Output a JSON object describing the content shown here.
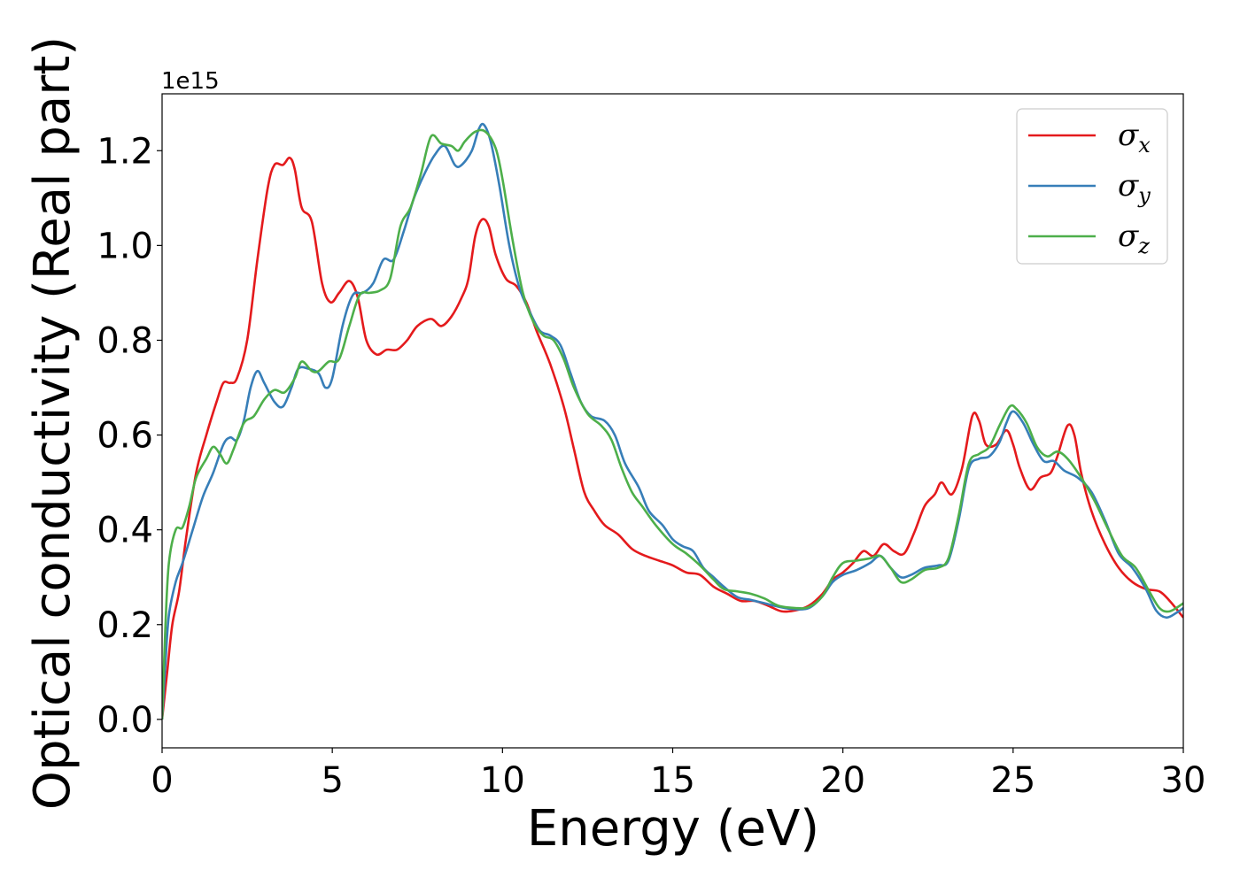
{
  "chart_data": {
    "type": "line",
    "title": "",
    "xlabel": "Energy (eV)",
    "ylabel": "Optical conductivity (Real part)",
    "y_offset_label": "1e15",
    "xlim": [
      0,
      30
    ],
    "ylim": [
      -0.06,
      1.32
    ],
    "xticks": [
      0,
      5,
      10,
      15,
      20,
      25,
      30
    ],
    "xtick_labels": [
      "0",
      "5",
      "10",
      "15",
      "20",
      "25",
      "30"
    ],
    "yticks": [
      0.0,
      0.2,
      0.4,
      0.6,
      0.8,
      1.0,
      1.2
    ],
    "ytick_labels": [
      "0.0",
      "0.2",
      "0.4",
      "0.6",
      "0.8",
      "1.0",
      "1.2"
    ],
    "grid": false,
    "legend_position": "top-right",
    "series": [
      {
        "name": "σx",
        "symbol": "σ",
        "subscript": "x",
        "color": "#e41a1c",
        "points": [
          [
            0,
            0
          ],
          [
            0.15,
            0.1
          ],
          [
            0.3,
            0.2
          ],
          [
            0.5,
            0.27
          ],
          [
            0.7,
            0.38
          ],
          [
            1.0,
            0.52
          ],
          [
            1.3,
            0.6
          ],
          [
            1.6,
            0.67
          ],
          [
            1.8,
            0.71
          ],
          [
            2.0,
            0.71
          ],
          [
            2.2,
            0.72
          ],
          [
            2.5,
            0.8
          ],
          [
            2.8,
            0.97
          ],
          [
            3.1,
            1.12
          ],
          [
            3.3,
            1.17
          ],
          [
            3.55,
            1.17
          ],
          [
            3.75,
            1.185
          ],
          [
            3.9,
            1.16
          ],
          [
            4.1,
            1.08
          ],
          [
            4.4,
            1.05
          ],
          [
            4.7,
            0.92
          ],
          [
            4.95,
            0.88
          ],
          [
            5.2,
            0.9
          ],
          [
            5.5,
            0.925
          ],
          [
            5.75,
            0.89
          ],
          [
            6.0,
            0.8
          ],
          [
            6.3,
            0.77
          ],
          [
            6.6,
            0.78
          ],
          [
            6.9,
            0.78
          ],
          [
            7.2,
            0.8
          ],
          [
            7.5,
            0.83
          ],
          [
            7.9,
            0.845
          ],
          [
            8.2,
            0.83
          ],
          [
            8.5,
            0.85
          ],
          [
            8.8,
            0.89
          ],
          [
            9.0,
            0.93
          ],
          [
            9.2,
            1.02
          ],
          [
            9.4,
            1.055
          ],
          [
            9.6,
            1.04
          ],
          [
            9.8,
            0.98
          ],
          [
            10.1,
            0.93
          ],
          [
            10.4,
            0.915
          ],
          [
            10.7,
            0.88
          ],
          [
            11.0,
            0.82
          ],
          [
            11.4,
            0.75
          ],
          [
            11.8,
            0.66
          ],
          [
            12.1,
            0.57
          ],
          [
            12.4,
            0.48
          ],
          [
            12.7,
            0.44
          ],
          [
            13.0,
            0.41
          ],
          [
            13.4,
            0.39
          ],
          [
            13.8,
            0.36
          ],
          [
            14.2,
            0.345
          ],
          [
            14.6,
            0.335
          ],
          [
            15.0,
            0.325
          ],
          [
            15.4,
            0.31
          ],
          [
            15.8,
            0.305
          ],
          [
            16.2,
            0.28
          ],
          [
            16.6,
            0.265
          ],
          [
            17.0,
            0.25
          ],
          [
            17.4,
            0.25
          ],
          [
            17.8,
            0.24
          ],
          [
            18.2,
            0.228
          ],
          [
            18.6,
            0.23
          ],
          [
            19.0,
            0.24
          ],
          [
            19.4,
            0.265
          ],
          [
            19.7,
            0.295
          ],
          [
            20.0,
            0.31
          ],
          [
            20.3,
            0.33
          ],
          [
            20.6,
            0.355
          ],
          [
            20.9,
            0.345
          ],
          [
            21.2,
            0.37
          ],
          [
            21.5,
            0.355
          ],
          [
            21.8,
            0.35
          ],
          [
            22.1,
            0.395
          ],
          [
            22.4,
            0.45
          ],
          [
            22.7,
            0.475
          ],
          [
            22.9,
            0.5
          ],
          [
            23.2,
            0.475
          ],
          [
            23.5,
            0.53
          ],
          [
            23.8,
            0.64
          ],
          [
            24.0,
            0.63
          ],
          [
            24.2,
            0.58
          ],
          [
            24.5,
            0.58
          ],
          [
            24.8,
            0.61
          ],
          [
            25.0,
            0.58
          ],
          [
            25.2,
            0.53
          ],
          [
            25.5,
            0.485
          ],
          [
            25.8,
            0.51
          ],
          [
            26.1,
            0.52
          ],
          [
            26.3,
            0.555
          ],
          [
            26.6,
            0.62
          ],
          [
            26.8,
            0.6
          ],
          [
            27.0,
            0.52
          ],
          [
            27.3,
            0.44
          ],
          [
            27.7,
            0.37
          ],
          [
            28.1,
            0.32
          ],
          [
            28.5,
            0.29
          ],
          [
            28.9,
            0.275
          ],
          [
            29.3,
            0.27
          ],
          [
            29.6,
            0.25
          ],
          [
            30.0,
            0.215
          ]
        ]
      },
      {
        "name": "σy",
        "symbol": "σ",
        "subscript": "y",
        "color": "#377eb8",
        "points": [
          [
            0,
            0
          ],
          [
            0.1,
            0.12
          ],
          [
            0.2,
            0.22
          ],
          [
            0.4,
            0.29
          ],
          [
            0.6,
            0.33
          ],
          [
            0.9,
            0.4
          ],
          [
            1.2,
            0.47
          ],
          [
            1.5,
            0.52
          ],
          [
            1.8,
            0.58
          ],
          [
            2.0,
            0.595
          ],
          [
            2.2,
            0.59
          ],
          [
            2.4,
            0.63
          ],
          [
            2.6,
            0.7
          ],
          [
            2.8,
            0.735
          ],
          [
            3.0,
            0.71
          ],
          [
            3.3,
            0.67
          ],
          [
            3.55,
            0.66
          ],
          [
            3.8,
            0.7
          ],
          [
            4.0,
            0.74
          ],
          [
            4.3,
            0.74
          ],
          [
            4.6,
            0.73
          ],
          [
            4.8,
            0.7
          ],
          [
            5.0,
            0.72
          ],
          [
            5.3,
            0.83
          ],
          [
            5.6,
            0.895
          ],
          [
            5.9,
            0.9
          ],
          [
            6.2,
            0.92
          ],
          [
            6.5,
            0.97
          ],
          [
            6.8,
            0.97
          ],
          [
            7.1,
            1.03
          ],
          [
            7.4,
            1.1
          ],
          [
            7.7,
            1.15
          ],
          [
            8.0,
            1.19
          ],
          [
            8.3,
            1.21
          ],
          [
            8.6,
            1.17
          ],
          [
            8.8,
            1.17
          ],
          [
            9.1,
            1.2
          ],
          [
            9.3,
            1.245
          ],
          [
            9.45,
            1.255
          ],
          [
            9.65,
            1.22
          ],
          [
            9.9,
            1.13
          ],
          [
            10.2,
            1.0
          ],
          [
            10.5,
            0.91
          ],
          [
            10.8,
            0.86
          ],
          [
            11.1,
            0.82
          ],
          [
            11.4,
            0.81
          ],
          [
            11.7,
            0.79
          ],
          [
            12.0,
            0.73
          ],
          [
            12.3,
            0.67
          ],
          [
            12.6,
            0.64
          ],
          [
            13.0,
            0.63
          ],
          [
            13.3,
            0.6
          ],
          [
            13.6,
            0.54
          ],
          [
            14.0,
            0.49
          ],
          [
            14.3,
            0.44
          ],
          [
            14.7,
            0.41
          ],
          [
            15.0,
            0.38
          ],
          [
            15.3,
            0.365
          ],
          [
            15.6,
            0.355
          ],
          [
            15.9,
            0.32
          ],
          [
            16.2,
            0.3
          ],
          [
            16.5,
            0.28
          ],
          [
            16.9,
            0.258
          ],
          [
            17.3,
            0.252
          ],
          [
            17.7,
            0.245
          ],
          [
            18.1,
            0.238
          ],
          [
            18.5,
            0.233
          ],
          [
            19.0,
            0.235
          ],
          [
            19.4,
            0.26
          ],
          [
            19.7,
            0.29
          ],
          [
            20.0,
            0.305
          ],
          [
            20.4,
            0.315
          ],
          [
            20.8,
            0.33
          ],
          [
            21.1,
            0.345
          ],
          [
            21.4,
            0.32
          ],
          [
            21.7,
            0.3
          ],
          [
            22.0,
            0.305
          ],
          [
            22.4,
            0.32
          ],
          [
            22.8,
            0.325
          ],
          [
            23.1,
            0.335
          ],
          [
            23.4,
            0.42
          ],
          [
            23.7,
            0.53
          ],
          [
            24.0,
            0.55
          ],
          [
            24.3,
            0.555
          ],
          [
            24.6,
            0.585
          ],
          [
            24.8,
            0.625
          ],
          [
            25.0,
            0.65
          ],
          [
            25.3,
            0.625
          ],
          [
            25.6,
            0.58
          ],
          [
            25.9,
            0.545
          ],
          [
            26.2,
            0.545
          ],
          [
            26.5,
            0.525
          ],
          [
            26.9,
            0.51
          ],
          [
            27.3,
            0.48
          ],
          [
            27.7,
            0.42
          ],
          [
            28.1,
            0.35
          ],
          [
            28.5,
            0.32
          ],
          [
            28.9,
            0.275
          ],
          [
            29.2,
            0.23
          ],
          [
            29.5,
            0.215
          ],
          [
            29.8,
            0.225
          ],
          [
            30.0,
            0.235
          ]
        ]
      },
      {
        "name": "σz",
        "symbol": "σ",
        "subscript": "z",
        "color": "#4daf4a",
        "points": [
          [
            0,
            0
          ],
          [
            0.1,
            0.2
          ],
          [
            0.2,
            0.33
          ],
          [
            0.4,
            0.4
          ],
          [
            0.6,
            0.405
          ],
          [
            0.8,
            0.45
          ],
          [
            1.0,
            0.51
          ],
          [
            1.3,
            0.55
          ],
          [
            1.5,
            0.575
          ],
          [
            1.7,
            0.56
          ],
          [
            1.9,
            0.54
          ],
          [
            2.1,
            0.57
          ],
          [
            2.4,
            0.625
          ],
          [
            2.7,
            0.64
          ],
          [
            3.0,
            0.675
          ],
          [
            3.3,
            0.695
          ],
          [
            3.6,
            0.69
          ],
          [
            3.9,
            0.72
          ],
          [
            4.1,
            0.755
          ],
          [
            4.4,
            0.735
          ],
          [
            4.6,
            0.735
          ],
          [
            4.9,
            0.755
          ],
          [
            5.2,
            0.76
          ],
          [
            5.5,
            0.83
          ],
          [
            5.8,
            0.895
          ],
          [
            6.1,
            0.9
          ],
          [
            6.4,
            0.905
          ],
          [
            6.7,
            0.93
          ],
          [
            7.0,
            1.04
          ],
          [
            7.3,
            1.08
          ],
          [
            7.6,
            1.15
          ],
          [
            7.9,
            1.23
          ],
          [
            8.2,
            1.215
          ],
          [
            8.5,
            1.21
          ],
          [
            8.7,
            1.2
          ],
          [
            8.9,
            1.22
          ],
          [
            9.2,
            1.24
          ],
          [
            9.5,
            1.24
          ],
          [
            9.8,
            1.205
          ],
          [
            10.0,
            1.14
          ],
          [
            10.3,
            1.01
          ],
          [
            10.6,
            0.9
          ],
          [
            10.9,
            0.84
          ],
          [
            11.2,
            0.81
          ],
          [
            11.5,
            0.8
          ],
          [
            11.8,
            0.76
          ],
          [
            12.1,
            0.7
          ],
          [
            12.5,
            0.645
          ],
          [
            12.9,
            0.62
          ],
          [
            13.2,
            0.59
          ],
          [
            13.5,
            0.53
          ],
          [
            13.8,
            0.48
          ],
          [
            14.1,
            0.45
          ],
          [
            14.5,
            0.41
          ],
          [
            15.0,
            0.37
          ],
          [
            15.4,
            0.35
          ],
          [
            15.8,
            0.325
          ],
          [
            16.2,
            0.295
          ],
          [
            16.5,
            0.275
          ],
          [
            16.9,
            0.27
          ],
          [
            17.3,
            0.265
          ],
          [
            17.7,
            0.255
          ],
          [
            18.1,
            0.24
          ],
          [
            18.6,
            0.235
          ],
          [
            19.0,
            0.237
          ],
          [
            19.4,
            0.26
          ],
          [
            19.7,
            0.3
          ],
          [
            20.0,
            0.33
          ],
          [
            20.4,
            0.335
          ],
          [
            20.8,
            0.34
          ],
          [
            21.1,
            0.345
          ],
          [
            21.4,
            0.32
          ],
          [
            21.7,
            0.29
          ],
          [
            22.0,
            0.295
          ],
          [
            22.4,
            0.315
          ],
          [
            22.8,
            0.32
          ],
          [
            23.1,
            0.34
          ],
          [
            23.4,
            0.43
          ],
          [
            23.7,
            0.54
          ],
          [
            24.0,
            0.56
          ],
          [
            24.3,
            0.575
          ],
          [
            24.6,
            0.62
          ],
          [
            24.9,
            0.66
          ],
          [
            25.1,
            0.655
          ],
          [
            25.4,
            0.625
          ],
          [
            25.7,
            0.575
          ],
          [
            26.0,
            0.555
          ],
          [
            26.3,
            0.565
          ],
          [
            26.6,
            0.55
          ],
          [
            27.0,
            0.51
          ],
          [
            27.4,
            0.46
          ],
          [
            27.8,
            0.4
          ],
          [
            28.2,
            0.345
          ],
          [
            28.6,
            0.32
          ],
          [
            29.0,
            0.27
          ],
          [
            29.3,
            0.235
          ],
          [
            29.6,
            0.228
          ],
          [
            30.0,
            0.245
          ]
        ]
      }
    ]
  }
}
